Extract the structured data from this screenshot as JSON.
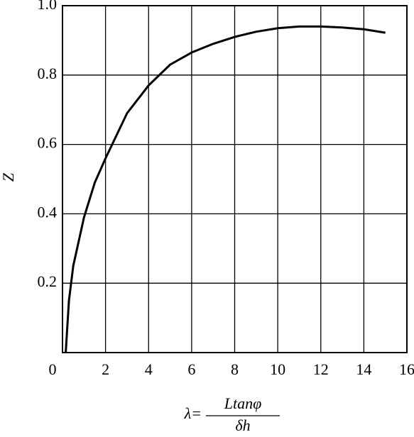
{
  "chart_data": {
    "type": "line",
    "y_label": "Z",
    "x_label": {
      "lhs": "λ=",
      "numerator": "Ltanφ",
      "denominator": "δh"
    },
    "x": [
      0.15,
      0.3,
      0.5,
      1,
      1.5,
      2,
      3,
      4,
      5,
      6,
      7,
      8,
      9,
      10,
      11,
      12,
      13,
      14,
      15
    ],
    "series": [
      {
        "color": "#000000",
        "values": [
          0,
          0.15,
          0.25,
          0.39,
          0.49,
          0.56,
          0.69,
          0.77,
          0.83,
          0.865,
          0.89,
          0.91,
          0.925,
          0.935,
          0.94,
          0.94,
          0.937,
          0.932,
          0.922
        ]
      }
    ],
    "xlim": [
      0,
      16
    ],
    "ylim": [
      0,
      1
    ],
    "xticks": [
      0,
      2,
      4,
      6,
      8,
      10,
      12,
      14,
      16
    ],
    "yticks": [
      0.2,
      0.4,
      0.6,
      0.8,
      {
        "value": 1,
        "label": "1.0"
      }
    ],
    "grid": true
  }
}
